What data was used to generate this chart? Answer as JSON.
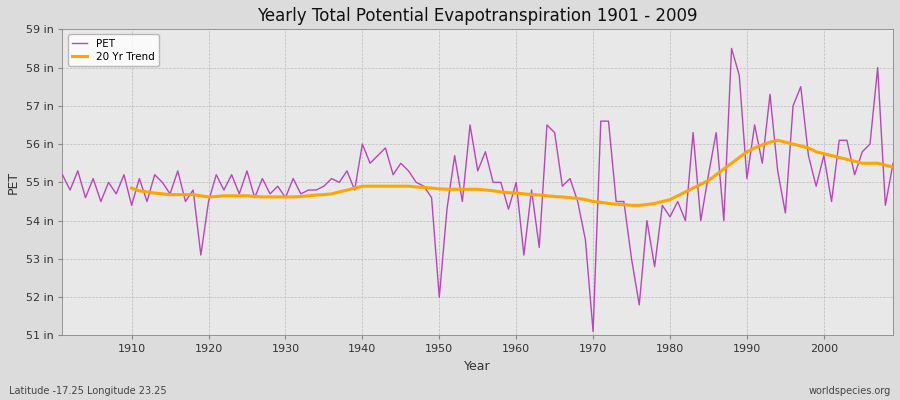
{
  "title": "Yearly Total Potential Evapotranspiration 1901 - 2009",
  "xlabel": "Year",
  "ylabel": "PET",
  "subtitle_left": "Latitude -17.25 Longitude 23.25",
  "subtitle_right": "worldspecies.org",
  "pet_color": "#BB44BB",
  "trend_color": "#FFA500",
  "fig_bg_color": "#DCDCDC",
  "plot_bg_color": "#E8E8E8",
  "ylim": [
    51,
    59
  ],
  "yticks": [
    51,
    52,
    53,
    54,
    55,
    56,
    57,
    58,
    59
  ],
  "ytick_labels": [
    "51 in",
    "52 in",
    "53 in",
    "54 in",
    "55 in",
    "56 in",
    "57 in",
    "58 in",
    "59 in"
  ],
  "xlim": [
    1901,
    2009
  ],
  "xticks": [
    1910,
    1920,
    1930,
    1940,
    1950,
    1960,
    1970,
    1980,
    1990,
    2000
  ],
  "years": [
    1901,
    1902,
    1903,
    1904,
    1905,
    1906,
    1907,
    1908,
    1909,
    1910,
    1911,
    1912,
    1913,
    1914,
    1915,
    1916,
    1917,
    1918,
    1919,
    1920,
    1921,
    1922,
    1923,
    1924,
    1925,
    1926,
    1927,
    1928,
    1929,
    1930,
    1931,
    1932,
    1933,
    1934,
    1935,
    1936,
    1937,
    1938,
    1939,
    1940,
    1941,
    1942,
    1943,
    1944,
    1945,
    1946,
    1947,
    1948,
    1949,
    1950,
    1951,
    1952,
    1953,
    1954,
    1955,
    1956,
    1957,
    1958,
    1959,
    1960,
    1961,
    1962,
    1963,
    1964,
    1965,
    1966,
    1967,
    1968,
    1969,
    1970,
    1971,
    1972,
    1973,
    1974,
    1975,
    1976,
    1977,
    1978,
    1979,
    1980,
    1981,
    1982,
    1983,
    1984,
    1985,
    1986,
    1987,
    1988,
    1989,
    1990,
    1991,
    1992,
    1993,
    1994,
    1995,
    1996,
    1997,
    1998,
    1999,
    2000,
    2001,
    2002,
    2003,
    2004,
    2005,
    2006,
    2007,
    2008,
    2009
  ],
  "pet": [
    55.2,
    54.8,
    55.3,
    54.6,
    55.1,
    54.5,
    55.0,
    54.7,
    55.2,
    54.4,
    55.1,
    54.5,
    55.2,
    55.0,
    54.7,
    55.3,
    54.5,
    54.8,
    53.1,
    54.5,
    55.2,
    54.8,
    55.2,
    54.7,
    55.3,
    54.6,
    55.1,
    54.7,
    54.9,
    54.6,
    55.1,
    54.7,
    54.8,
    54.8,
    54.9,
    55.1,
    55.0,
    55.3,
    54.8,
    56.0,
    55.5,
    55.7,
    55.9,
    55.2,
    55.5,
    55.3,
    55.0,
    54.9,
    54.6,
    52.0,
    54.3,
    55.7,
    54.5,
    56.5,
    55.3,
    55.8,
    55.0,
    55.0,
    54.3,
    55.0,
    53.1,
    54.8,
    53.3,
    56.5,
    56.3,
    54.9,
    55.1,
    54.5,
    53.5,
    51.1,
    56.6,
    56.6,
    54.5,
    54.5,
    53.0,
    51.8,
    54.0,
    52.8,
    54.4,
    54.1,
    54.5,
    54.0,
    56.3,
    54.0,
    55.2,
    56.3,
    54.0,
    58.5,
    57.8,
    55.1,
    56.5,
    55.5,
    57.3,
    55.3,
    54.2,
    57.0,
    57.5,
    55.7,
    54.9,
    55.7,
    54.5,
    56.1,
    56.1,
    55.2,
    55.8,
    56.0,
    58.0,
    54.4,
    55.5
  ],
  "trend": [
    null,
    null,
    null,
    null,
    null,
    null,
    null,
    null,
    null,
    54.85,
    54.78,
    54.75,
    54.72,
    54.7,
    54.68,
    54.68,
    54.68,
    54.68,
    54.65,
    54.62,
    54.63,
    54.65,
    54.65,
    54.65,
    54.65,
    54.63,
    54.62,
    54.62,
    54.62,
    54.62,
    54.62,
    54.63,
    54.65,
    54.67,
    54.68,
    54.7,
    54.75,
    54.8,
    54.85,
    54.9,
    54.9,
    54.9,
    54.9,
    54.9,
    54.9,
    54.9,
    54.88,
    54.87,
    54.85,
    54.83,
    54.82,
    54.82,
    54.82,
    54.82,
    54.82,
    54.8,
    54.78,
    54.75,
    54.73,
    54.72,
    54.7,
    54.68,
    54.67,
    54.65,
    54.63,
    54.62,
    54.6,
    54.58,
    54.55,
    54.5,
    54.48,
    54.45,
    54.43,
    54.42,
    54.4,
    54.4,
    54.42,
    54.45,
    54.5,
    54.55,
    54.65,
    54.75,
    54.85,
    54.95,
    55.05,
    55.2,
    55.35,
    55.5,
    55.65,
    55.8,
    55.9,
    55.98,
    56.05,
    56.1,
    56.05,
    56.0,
    55.95,
    55.9,
    55.8,
    55.75,
    55.7,
    55.65,
    55.6,
    55.55,
    55.5,
    55.5,
    55.5,
    55.45,
    55.4
  ]
}
